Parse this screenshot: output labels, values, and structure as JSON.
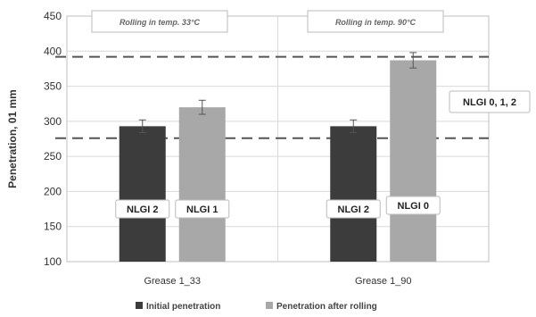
{
  "chart_data": {
    "type": "bar",
    "categories": [
      "Grease 1_33",
      "Grease 1_90"
    ],
    "series": [
      {
        "name": "Initial penetration",
        "values": [
          293,
          293
        ],
        "errors": [
          9,
          9
        ],
        "color": "#3c3c3c"
      },
      {
        "name": "Penetration after rolling",
        "values": [
          320,
          387
        ],
        "errors": [
          10,
          11
        ],
        "color": "#a8a8a8"
      }
    ],
    "ylabel": "Penetration, 01 mm",
    "xlabel": "",
    "ylim": [
      100,
      450
    ],
    "yticks": [
      100,
      150,
      200,
      250,
      300,
      350,
      400,
      450
    ],
    "gridlines": true,
    "legend_position": "bottom",
    "reference_lines": [
      276,
      392
    ],
    "group_captions": [
      "Rolling in temp. 33°C",
      "Rolling in temp. 90°C"
    ],
    "bar_labels": [
      [
        "NLGI 2",
        "NLGI 1"
      ],
      [
        "NLGI 2",
        "NLGI 0"
      ]
    ],
    "side_label": "NLGI 0, 1, 2"
  }
}
